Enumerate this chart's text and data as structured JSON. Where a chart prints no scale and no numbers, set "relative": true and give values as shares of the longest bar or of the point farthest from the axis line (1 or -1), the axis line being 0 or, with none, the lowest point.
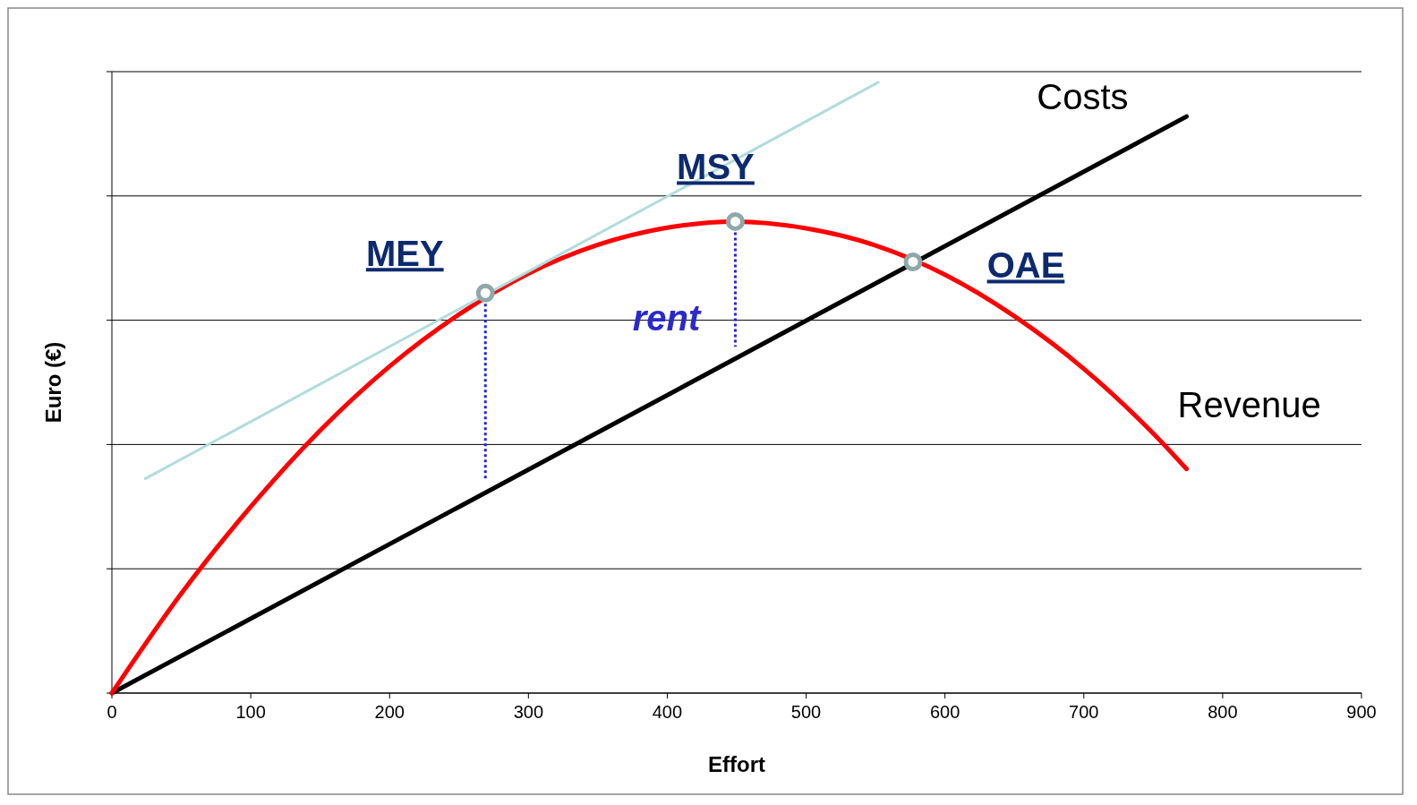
{
  "chart_data": {
    "type": "line",
    "relative": true,
    "xlabel": "Effort",
    "ylabel": "Euro (€)",
    "xlim": [
      0,
      900
    ],
    "xticks": [
      0,
      100,
      200,
      300,
      400,
      500,
      600,
      700,
      800,
      900
    ],
    "grid": "y",
    "tick_labels": "x",
    "series": [
      {
        "name": "Costs",
        "color": "#000000",
        "x": [
          0,
          774
        ],
        "values": [
          0,
          0.944
        ]
      },
      {
        "name": "Revenue",
        "color": "#ff0000",
        "x": [
          0,
          50,
          100,
          150,
          200,
          250,
          300,
          350,
          400,
          449,
          500,
          550,
          600,
          650,
          700,
          750,
          774
        ],
        "values": [
          0,
          0.163,
          0.305,
          0.43,
          0.535,
          0.62,
          0.687,
          0.734,
          0.762,
          0.772,
          0.761,
          0.733,
          0.685,
          0.617,
          0.531,
          0.425,
          0.367
        ]
      },
      {
        "color": "#b0dcdc",
        "x": [
          24,
          552
        ],
        "values": [
          0.351,
          1
        ]
      },
      {
        "color": "#2222dd",
        "line_style": "dotted",
        "x": [
          269,
          269
        ],
        "values": [
          0.655,
          0.351
        ]
      },
      {
        "color": "#2222dd",
        "line_style": "dotted",
        "x": [
          449,
          449
        ],
        "values": [
          0.772,
          0.567
        ]
      },
      {
        "type": "scatter",
        "color": "#8fa8a8",
        "marker": "circle",
        "x": [
          269,
          449,
          577
        ],
        "values": [
          0.655,
          0.772,
          0.706
        ]
      }
    ],
    "annotations": [
      {
        "text": "MEY",
        "x": 269,
        "y": 0.655
      },
      {
        "text": "MSY",
        "x": 449,
        "y": 0.772
      },
      {
        "text": "OAE",
        "x": 577,
        "y": 0.706
      },
      {
        "text": "rent",
        "x": 449,
        "y": 0.655
      }
    ]
  }
}
